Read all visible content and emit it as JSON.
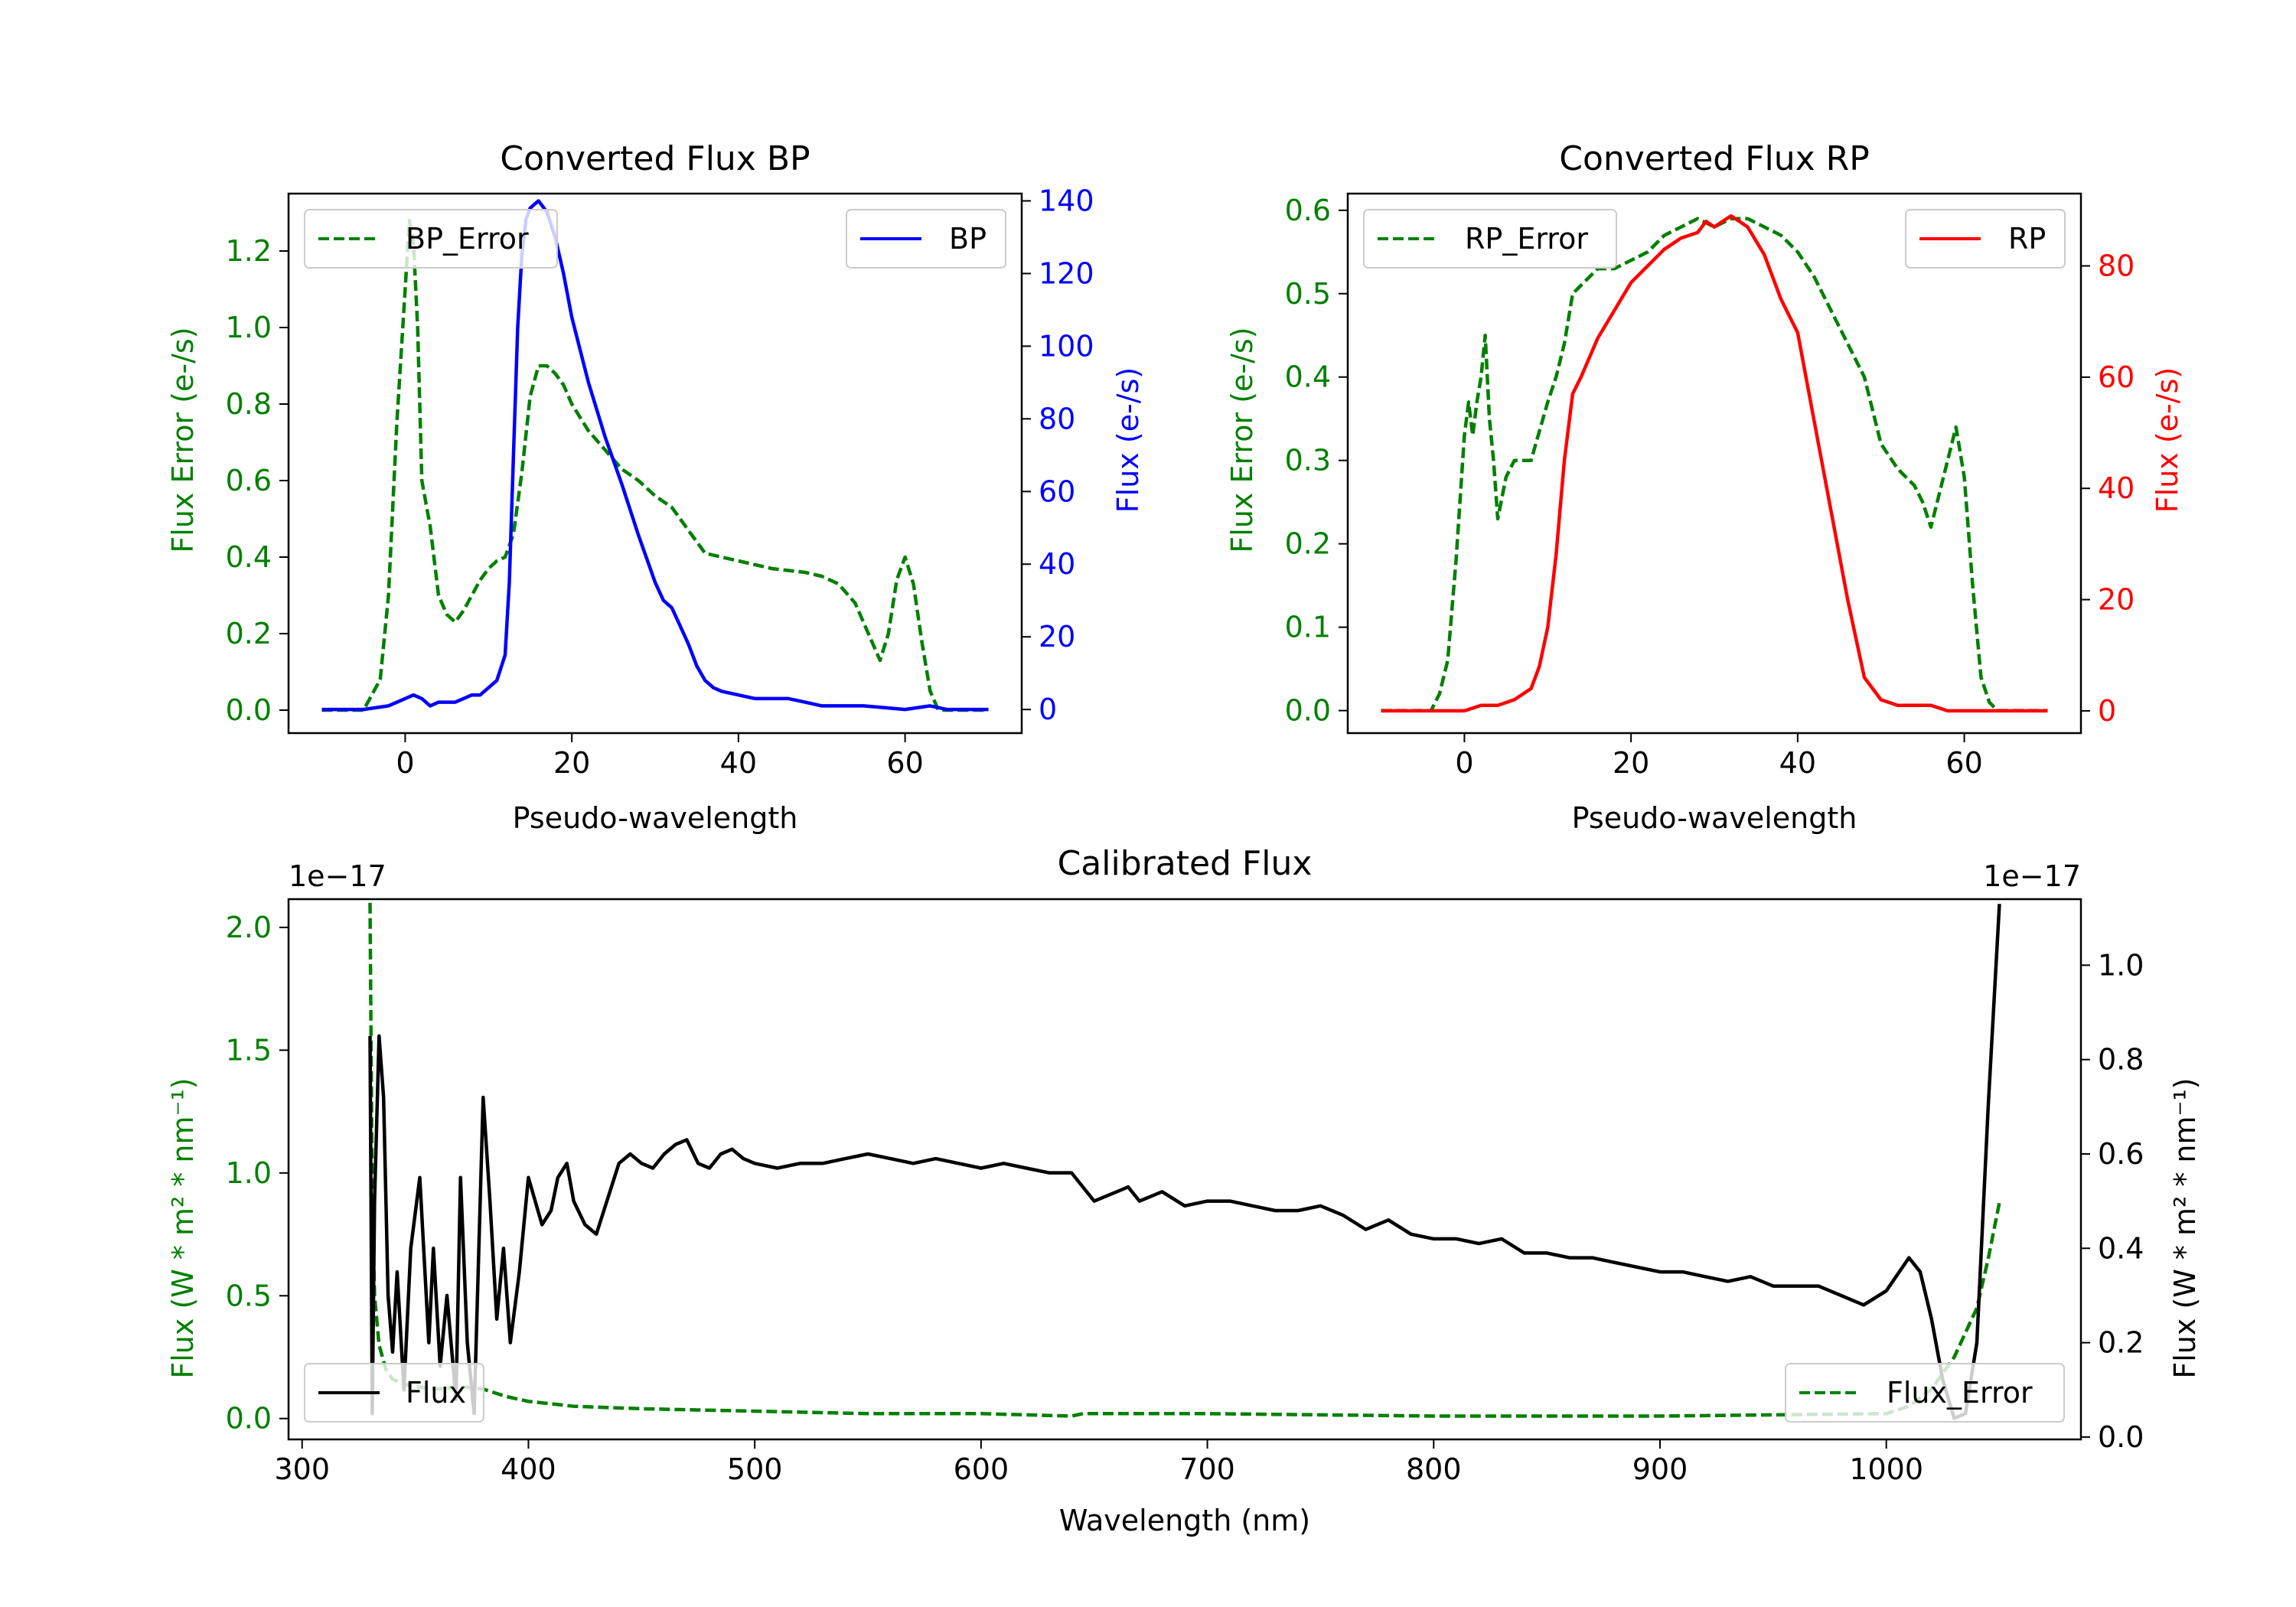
{
  "chart_data": [
    {
      "id": "bp",
      "type": "line",
      "title": "Converted Flux BP",
      "xlabel": "Pseudo-wavelength",
      "ylabel_left": "Flux Error (e-/s)",
      "ylabel_right": "Flux (e-/s)",
      "xlim": [
        -14,
        74
      ],
      "ylim_left": [
        -0.06,
        1.35
      ],
      "ylim_right": [
        -6.5,
        142
      ],
      "xticks": [
        0,
        20,
        40,
        60
      ],
      "yticks_left": [
        0.0,
        0.2,
        0.4,
        0.6,
        0.8,
        1.0,
        1.2
      ],
      "yticks_right": [
        0,
        20,
        40,
        60,
        80,
        100,
        120,
        140
      ],
      "legend_left": "BP_Error",
      "legend_right": "BP",
      "left_color": "#008000",
      "right_color": "#0000ff",
      "series_error": {
        "name": "BP_Error",
        "axis": "left",
        "style": "dashed",
        "x": [
          -10,
          -5,
          -3,
          -2,
          -1,
          0,
          0.5,
          1,
          1.5,
          2,
          3,
          4,
          5,
          6,
          7,
          8,
          9,
          10,
          11,
          12,
          13,
          14,
          15,
          16,
          17,
          18,
          19,
          20,
          22,
          24,
          26,
          28,
          30,
          32,
          34,
          36,
          38,
          40,
          44,
          48,
          50,
          52,
          54,
          56,
          57,
          58,
          59,
          60,
          61,
          62,
          63,
          64,
          65,
          70
        ],
        "y": [
          0.0,
          0.0,
          0.08,
          0.3,
          0.75,
          1.1,
          1.28,
          1.22,
          1.0,
          0.6,
          0.48,
          0.3,
          0.25,
          0.23,
          0.26,
          0.3,
          0.34,
          0.37,
          0.39,
          0.4,
          0.46,
          0.62,
          0.82,
          0.9,
          0.9,
          0.88,
          0.85,
          0.8,
          0.73,
          0.68,
          0.63,
          0.6,
          0.56,
          0.53,
          0.47,
          0.41,
          0.4,
          0.39,
          0.37,
          0.36,
          0.35,
          0.33,
          0.28,
          0.18,
          0.13,
          0.2,
          0.34,
          0.4,
          0.33,
          0.18,
          0.05,
          0.0,
          0.0,
          0.0
        ]
      },
      "series_flux": {
        "name": "BP",
        "axis": "right",
        "style": "solid",
        "x": [
          -10,
          -5,
          -2,
          0,
          1,
          2,
          3,
          4,
          5,
          6,
          7,
          8,
          9,
          10,
          11,
          12,
          12.5,
          13,
          13.5,
          14,
          14.5,
          15,
          15.5,
          16,
          17,
          18,
          19,
          20,
          22,
          24,
          26,
          28,
          30,
          31,
          32,
          33,
          34,
          35,
          36,
          37,
          38,
          40,
          42,
          44,
          46,
          48,
          50,
          55,
          60,
          63,
          65,
          70
        ],
        "y": [
          0,
          0,
          1,
          3,
          4,
          3,
          1,
          2,
          2,
          2,
          3,
          4,
          4,
          6,
          8,
          15,
          35,
          70,
          105,
          125,
          135,
          138,
          139,
          140,
          137,
          130,
          120,
          108,
          90,
          75,
          62,
          48,
          35,
          30,
          28,
          23,
          18,
          12,
          8,
          6,
          5,
          4,
          3,
          3,
          3,
          2,
          1,
          1,
          0,
          1,
          0,
          0
        ]
      }
    },
    {
      "id": "rp",
      "type": "line",
      "title": "Converted Flux RP",
      "xlabel": "Pseudo-wavelength",
      "ylabel_left": "Flux Error (e-/s)",
      "ylabel_right": "Flux (e-/s)",
      "xlim": [
        -14,
        74
      ],
      "ylim_left": [
        -0.027,
        0.62
      ],
      "ylim_right": [
        -4,
        93
      ],
      "xticks": [
        0,
        20,
        40,
        60
      ],
      "yticks_left": [
        0.0,
        0.1,
        0.2,
        0.3,
        0.4,
        0.5,
        0.6
      ],
      "yticks_right": [
        0,
        20,
        40,
        60,
        80
      ],
      "legend_left": "RP_Error",
      "legend_right": "RP",
      "left_color": "#008000",
      "right_color": "#ff0000",
      "series_error": {
        "name": "RP_Error",
        "axis": "left",
        "style": "dashed",
        "x": [
          -10,
          -4,
          -3,
          -2,
          -1,
          0,
          0.5,
          1,
          1.5,
          2,
          2.5,
          3,
          3.5,
          4,
          5,
          6,
          8,
          10,
          11,
          12,
          13,
          14,
          16,
          18,
          20,
          22,
          24,
          26,
          28,
          30,
          32,
          34,
          36,
          38,
          40,
          42,
          44,
          46,
          48,
          50,
          52,
          54,
          55,
          56,
          57,
          58,
          59,
          60,
          61,
          62,
          63,
          64,
          65,
          70
        ],
        "y": [
          0.0,
          0.0,
          0.02,
          0.06,
          0.18,
          0.33,
          0.37,
          0.33,
          0.37,
          0.4,
          0.45,
          0.35,
          0.3,
          0.23,
          0.28,
          0.3,
          0.3,
          0.37,
          0.4,
          0.44,
          0.5,
          0.51,
          0.53,
          0.53,
          0.54,
          0.55,
          0.57,
          0.58,
          0.59,
          0.58,
          0.59,
          0.59,
          0.58,
          0.57,
          0.55,
          0.52,
          0.48,
          0.44,
          0.4,
          0.32,
          0.29,
          0.27,
          0.25,
          0.22,
          0.26,
          0.3,
          0.34,
          0.28,
          0.15,
          0.04,
          0.01,
          0.0,
          0.0,
          0.0
        ]
      },
      "series_flux": {
        "name": "RP",
        "axis": "right",
        "style": "solid",
        "x": [
          -10,
          -2,
          0,
          2,
          4,
          6,
          8,
          9,
          10,
          11,
          12,
          13,
          14,
          16,
          18,
          20,
          22,
          24,
          26,
          28,
          29,
          30,
          31,
          32,
          33,
          34,
          36,
          38,
          40,
          42,
          44,
          46,
          48,
          50,
          52,
          54,
          56,
          58,
          60,
          65,
          70
        ],
        "y": [
          0,
          0,
          0,
          1,
          1,
          2,
          4,
          8,
          15,
          28,
          45,
          57,
          60,
          67,
          72,
          77,
          80,
          83,
          85,
          86,
          88,
          87,
          88,
          89,
          88,
          87,
          82,
          74,
          68,
          52,
          36,
          20,
          6,
          2,
          1,
          1,
          1,
          0,
          0,
          0,
          0
        ]
      }
    },
    {
      "id": "calibrated",
      "type": "line",
      "title": "Calibrated Flux",
      "xlabel": "Wavelength (nm)",
      "ylabel_left": "Flux (W * m² * nm⁻¹)",
      "ylabel_right": "Flux (W * m² * nm⁻¹)",
      "offset_left": "1e−17",
      "offset_right": "1e−17",
      "xlim": [
        294,
        1086
      ],
      "ylim_left": [
        -0.085,
        2.115
      ],
      "ylim_right": [
        -0.005,
        1.14
      ],
      "xticks": [
        300,
        400,
        500,
        600,
        700,
        800,
        900,
        1000
      ],
      "yticks_left": [
        0.0,
        0.5,
        1.0,
        1.5,
        2.0
      ],
      "yticks_right": [
        0.0,
        0.2,
        0.4,
        0.6,
        0.8,
        1.0
      ],
      "legend_left": "Flux",
      "legend_right": "Flux_Error",
      "left_color": "#008000",
      "right_color": "#000000",
      "series_error": {
        "name": "Flux_Error",
        "axis": "left",
        "style": "dashed",
        "x": [
          330,
          330.5,
          331,
          332,
          334,
          337,
          340,
          345,
          350,
          360,
          370,
          380,
          390,
          400,
          420,
          450,
          500,
          550,
          600,
          640,
          645,
          700,
          800,
          900,
          1000,
          1010,
          1020,
          1030,
          1035,
          1040,
          1045,
          1050
        ],
        "y": [
          2.1,
          1.5,
          0.9,
          0.5,
          0.3,
          0.2,
          0.16,
          0.14,
          0.13,
          0.12,
          0.13,
          0.12,
          0.09,
          0.07,
          0.05,
          0.04,
          0.03,
          0.02,
          0.02,
          0.01,
          0.02,
          0.02,
          0.01,
          0.01,
          0.02,
          0.05,
          0.12,
          0.25,
          0.35,
          0.45,
          0.65,
          0.88
        ]
      },
      "series_flux": {
        "name": "Flux",
        "axis": "right",
        "style": "solid",
        "x": [
          330,
          331,
          332,
          334,
          336,
          338,
          340,
          342,
          345,
          348,
          352,
          356,
          358,
          361,
          364,
          368,
          370,
          373,
          376,
          380,
          383,
          386,
          389,
          392,
          396,
          400,
          403,
          406,
          410,
          413,
          417,
          420,
          425,
          430,
          440,
          445,
          450,
          455,
          460,
          465,
          470,
          475,
          480,
          485,
          490,
          495,
          500,
          510,
          520,
          530,
          540,
          550,
          560,
          570,
          580,
          590,
          600,
          610,
          620,
          630,
          640,
          645,
          650,
          660,
          665,
          670,
          680,
          690,
          700,
          710,
          720,
          730,
          740,
          750,
          760,
          770,
          780,
          790,
          800,
          810,
          820,
          830,
          840,
          850,
          860,
          870,
          880,
          890,
          900,
          910,
          920,
          930,
          940,
          950,
          960,
          970,
          980,
          990,
          1000,
          1010,
          1015,
          1020,
          1025,
          1030,
          1035,
          1040,
          1045,
          1050
        ],
        "y": [
          0.85,
          0.05,
          0.5,
          0.85,
          0.72,
          0.3,
          0.18,
          0.35,
          0.1,
          0.4,
          0.55,
          0.2,
          0.4,
          0.15,
          0.3,
          0.08,
          0.55,
          0.2,
          0.05,
          0.72,
          0.5,
          0.25,
          0.4,
          0.2,
          0.35,
          0.55,
          0.5,
          0.45,
          0.48,
          0.55,
          0.58,
          0.5,
          0.45,
          0.43,
          0.58,
          0.6,
          0.58,
          0.57,
          0.6,
          0.62,
          0.63,
          0.58,
          0.57,
          0.6,
          0.61,
          0.59,
          0.58,
          0.57,
          0.58,
          0.58,
          0.59,
          0.6,
          0.59,
          0.58,
          0.59,
          0.58,
          0.57,
          0.58,
          0.57,
          0.56,
          0.56,
          0.53,
          0.5,
          0.52,
          0.53,
          0.5,
          0.52,
          0.49,
          0.5,
          0.5,
          0.49,
          0.48,
          0.48,
          0.49,
          0.47,
          0.44,
          0.46,
          0.43,
          0.42,
          0.42,
          0.41,
          0.42,
          0.39,
          0.39,
          0.38,
          0.38,
          0.37,
          0.36,
          0.35,
          0.35,
          0.34,
          0.33,
          0.34,
          0.32,
          0.32,
          0.32,
          0.3,
          0.28,
          0.31,
          0.38,
          0.35,
          0.25,
          0.12,
          0.04,
          0.05,
          0.2,
          0.7,
          1.13
        ]
      }
    }
  ]
}
